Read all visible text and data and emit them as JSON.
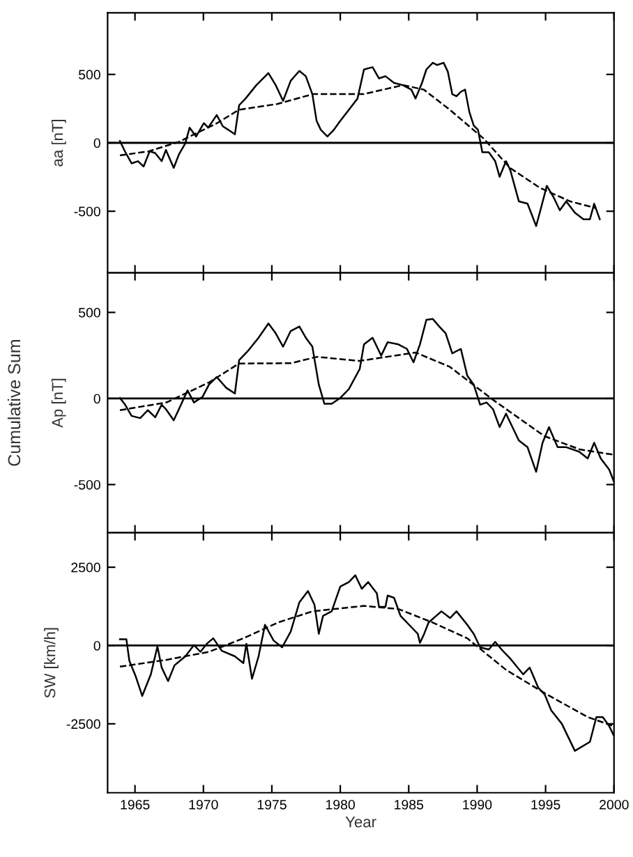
{
  "chart_data": [
    {
      "type": "line",
      "ylabel": "aa [nT]",
      "xlim": [
        1963,
        2000
      ],
      "xticks": [
        1965,
        1970,
        1975,
        1980,
        1985,
        1990,
        1995,
        2000
      ],
      "ylim": [
        -950,
        950
      ],
      "yticks": [
        -500,
        0,
        500
      ],
      "tick_labels": "y",
      "grid": false,
      "ref_lines": [
        {
          "axis": "y",
          "value": 0,
          "color": "#000000",
          "line_style": "solid"
        }
      ],
      "series": [
        {
          "color": "#000000",
          "line_style": "solid",
          "x": [
            1963.9,
            1964.28,
            1964.75,
            1965.22,
            1965.63,
            1966.07,
            1966.48,
            1966.95,
            1967.26,
            1967.83,
            1968.21,
            1968.68,
            1968.99,
            1969.47,
            1970.03,
            1970.35,
            1970.97,
            1971.42,
            1971.82,
            1972.3,
            1972.61,
            1973.08,
            1973.87,
            1974.75,
            1975.28,
            1975.82,
            1976.38,
            1977.01,
            1977.48,
            1977.96,
            1978.27,
            1978.58,
            1979.06,
            1979.53,
            1980.0,
            1980.63,
            1981.26,
            1981.73,
            1982.36,
            1982.83,
            1983.3,
            1983.93,
            1984.56,
            1985.19,
            1985.5,
            1985.97,
            1986.29,
            1986.76,
            1987.08,
            1987.55,
            1987.86,
            1988.18,
            1988.49,
            1988.81,
            1989.12,
            1989.43,
            1989.75,
            1990.06,
            1990.38,
            1990.85,
            1991.32,
            1991.64,
            1992.11,
            1992.42,
            1993.05,
            1993.68,
            1994.31,
            1994.62,
            1995.09,
            1995.57,
            1996.04,
            1996.51,
            1997.14,
            1997.77,
            1998.24,
            1998.55,
            1998.96
          ],
          "values": [
            13,
            -65,
            -150,
            -134,
            -173,
            -62,
            -75,
            -134,
            -52,
            -183,
            -85,
            -3,
            111,
            46,
            144,
            111,
            203,
            121,
            95,
            62,
            275,
            324,
            422,
            510,
            422,
            307,
            454,
            526,
            487,
            356,
            160,
            95,
            46,
            95,
            160,
            242,
            324,
            536,
            553,
            471,
            487,
            438,
            422,
            389,
            324,
            438,
            536,
            585,
            569,
            585,
            520,
            356,
            340,
            373,
            389,
            226,
            127,
            95,
            -69,
            -69,
            -134,
            -248,
            -134,
            -199,
            -428,
            -444,
            -608,
            -494,
            -314,
            -395,
            -493,
            -428,
            -510,
            -559,
            -559,
            -445,
            -559
          ]
        },
        {
          "color": "#000000",
          "line_style": "dashed",
          "x": [
            1963.9,
            1966.0,
            1968.2,
            1971.0,
            1972.6,
            1975.4,
            1978.0,
            1981.7,
            1984.6,
            1986.1,
            1988.0,
            1990.5,
            1992.4,
            1994.6,
            1996.8,
            1998.7
          ],
          "values": [
            -92,
            -62,
            7,
            144,
            242,
            284,
            356,
            356,
            422,
            389,
            242,
            29,
            -183,
            -330,
            -428,
            -477
          ]
        }
      ]
    },
    {
      "type": "line",
      "ylabel": "Ap [nT]",
      "xlim": [
        1963,
        2000
      ],
      "xticks": [
        1965,
        1970,
        1975,
        1980,
        1985,
        1990,
        1995,
        2000
      ],
      "ylim": [
        -780,
        730
      ],
      "yticks": [
        -500,
        0,
        500
      ],
      "tick_labels": "y",
      "grid": false,
      "annotations": [
        "Cumulative Sum"
      ],
      "ref_lines": [
        {
          "axis": "y",
          "value": 0,
          "color": "#000000",
          "line_style": "solid"
        }
      ],
      "series": [
        {
          "color": "#000000",
          "line_style": "solid",
          "x": [
            1963.9,
            1964.28,
            1964.75,
            1965.38,
            1965.94,
            1966.48,
            1966.95,
            1967.26,
            1967.83,
            1968.21,
            1968.84,
            1969.31,
            1969.94,
            1970.41,
            1970.97,
            1971.67,
            1972.3,
            1972.61,
            1973.24,
            1974.03,
            1974.75,
            1975.28,
            1975.82,
            1976.38,
            1977.01,
            1977.48,
            1977.96,
            1978.43,
            1978.84,
            1979.37,
            1980.0,
            1980.63,
            1981.42,
            1981.73,
            1982.36,
            1982.99,
            1983.46,
            1984.25,
            1984.87,
            1985.35,
            1985.82,
            1986.29,
            1986.76,
            1987.23,
            1987.7,
            1988.18,
            1988.81,
            1989.28,
            1989.75,
            1990.22,
            1990.69,
            1991.16,
            1991.64,
            1992.11,
            1992.42,
            1993.05,
            1993.68,
            1994.31,
            1994.78,
            1995.25,
            1995.88,
            1996.51,
            1997.45,
            1998.08,
            1998.55,
            1999.03,
            1999.65,
            1999.97
          ],
          "values": [
            3,
            -36,
            -101,
            -114,
            -68,
            -109,
            -36,
            -62,
            -127,
            -62,
            47,
            -23,
            10,
            81,
            125,
            62,
            29,
            223,
            275,
            353,
            436,
            379,
            301,
            392,
            418,
            353,
            301,
            81,
            -31,
            -31,
            3,
            55,
            171,
            314,
            353,
            249,
            327,
            314,
            288,
            210,
            314,
            457,
            462,
            418,
            379,
            262,
            288,
            132,
            81,
            -36,
            -23,
            -62,
            -166,
            -88,
            -140,
            -244,
            -283,
            -426,
            -257,
            -166,
            -283,
            -283,
            -309,
            -348,
            -257,
            -348,
            -413,
            -478
          ]
        },
        {
          "color": "#000000",
          "line_style": "dashed",
          "x": [
            1963.9,
            1967.3,
            1970.4,
            1972.6,
            1976.4,
            1978.3,
            1981.4,
            1985.5,
            1988.0,
            1991.2,
            1994.9,
            1997.5,
            2000.0
          ],
          "values": [
            -68,
            -23,
            93,
            203,
            205,
            242,
            218,
            267,
            184,
            -10,
            -218,
            -296,
            -327
          ]
        }
      ]
    },
    {
      "type": "line",
      "ylabel": "SW [km/h]",
      "xlabel": "Year",
      "xlim": [
        1963,
        2000
      ],
      "xticks": [
        1965,
        1970,
        1975,
        1980,
        1985,
        1990,
        1995,
        2000
      ],
      "ylim": [
        -4700,
        3600
      ],
      "yticks": [
        -2500,
        0,
        2500
      ],
      "grid": false,
      "ref_lines": [
        {
          "axis": "y",
          "value": 0,
          "color": "#000000",
          "line_style": "solid"
        }
      ],
      "series": [
        {
          "color": "#000000",
          "line_style": "solid",
          "x": [
            1963.9,
            1964.37,
            1964.59,
            1965.06,
            1965.53,
            1966.16,
            1966.64,
            1966.95,
            1967.42,
            1967.89,
            1968.68,
            1969.31,
            1969.78,
            1970.25,
            1970.72,
            1971.35,
            1972.3,
            1972.92,
            1973.14,
            1973.55,
            1974.03,
            1974.5,
            1975.13,
            1975.75,
            1976.38,
            1977.01,
            1977.64,
            1978.11,
            1978.43,
            1978.74,
            1979.37,
            1980.0,
            1980.63,
            1981.1,
            1981.57,
            1982.04,
            1982.67,
            1982.83,
            1983.3,
            1983.46,
            1983.93,
            1984.4,
            1985.19,
            1985.66,
            1985.82,
            1986.13,
            1986.45,
            1987.39,
            1988.02,
            1988.49,
            1989.28,
            1989.75,
            1990.22,
            1990.85,
            1991.32,
            1991.79,
            1992.42,
            1993.36,
            1993.84,
            1994.47,
            1994.94,
            1995.41,
            1996.19,
            1997.14,
            1998.24,
            1998.71,
            1999.18,
            1999.65,
            1999.97
          ],
          "values": [
            201,
            201,
            -489,
            -992,
            -1609,
            -920,
            -29,
            -704,
            -1135,
            -632,
            -345,
            14,
            -201,
            57,
            230,
            -172,
            -345,
            -560,
            57,
            -1063,
            -345,
            661,
            158,
            -57,
            445,
            1379,
            1739,
            1308,
            374,
            948,
            1092,
            1882,
            2026,
            2242,
            1811,
            2026,
            1667,
            1236,
            1236,
            1595,
            1523,
            948,
            589,
            374,
            86,
            374,
            733,
            1092,
            877,
            1092,
            661,
            374,
            -57,
            -129,
            115,
            -129,
            -417,
            -920,
            -704,
            -1351,
            -1566,
            -2069,
            -2500,
            -3363,
            -3075,
            -2285,
            -2285,
            -2572,
            -2860
          ]
        },
        {
          "color": "#000000",
          "line_style": "dashed",
          "x": [
            1963.9,
            1967.26,
            1970.41,
            1972.92,
            1975.44,
            1977.96,
            1981.73,
            1984.25,
            1986.76,
            1989.28,
            1992.11,
            1994.94,
            1998.08,
            1999.97
          ],
          "values": [
            -675,
            -460,
            -201,
            230,
            733,
            1092,
            1265,
            1164,
            733,
            230,
            -776,
            -1523,
            -2285,
            -2572
          ]
        }
      ]
    }
  ]
}
